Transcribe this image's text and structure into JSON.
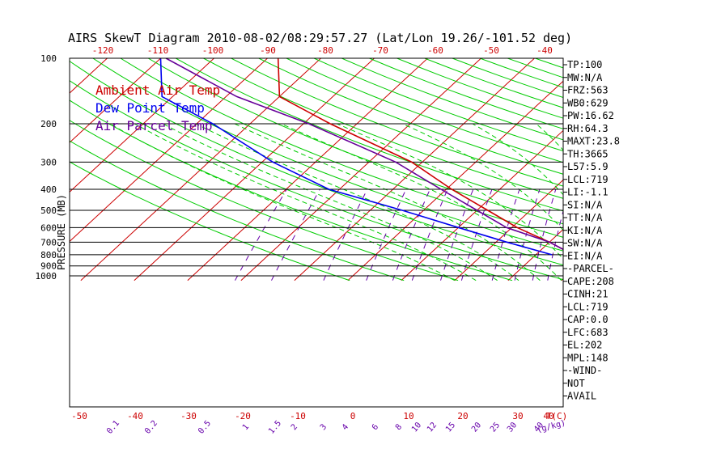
{
  "title": "AIRS SkewT Diagram 2010-08-02/08:29:57.27 (Lat/Lon 19.26/-101.52 deg)",
  "colors": {
    "ambient": "#cc0000",
    "dewpoint": "#0000ee",
    "parcel": "#660099",
    "isotherm": "#cc0000",
    "dry_adiabat": "#00cc00",
    "moist_adiabat": "#00cc00",
    "mixing_ratio": "#6600aa",
    "isobar": "#000000"
  },
  "legend": [
    {
      "label": "Ambient Air Temp",
      "color": "#cc0000"
    },
    {
      "label": "Dew Point Temp",
      "color": "#0000ee"
    },
    {
      "label": "Air Parcel Temp",
      "color": "#660099"
    }
  ],
  "chart_data": {
    "type": "line",
    "subtype": "skew-t log-p",
    "ylabel": "PRESSURE (MB)",
    "y_scale": "log",
    "ylim": [
      1050,
      100
    ],
    "pressure_ticks": [
      100,
      200,
      300,
      400,
      500,
      600,
      700,
      800,
      900,
      1000
    ],
    "top_temperature_ticks": [
      -120,
      -110,
      -100,
      -90,
      -80,
      -70,
      -60,
      -50,
      -40
    ],
    "bottom_temperature_ticks": [
      -50,
      -40,
      -30,
      -20,
      -10,
      0,
      10,
      20,
      30,
      40
    ],
    "bottom_axis_label": "T(C)",
    "mixing_ratio_ticks": [
      "0.1",
      "0.2",
      "0.5",
      "1",
      "1.5",
      "2",
      "3",
      "4",
      "6",
      "8",
      "10",
      "12",
      "15",
      "20",
      "25",
      "30",
      "40"
    ],
    "mixing_ratio_label": "(g/kg)",
    "series": [
      {
        "name": "Ambient Air Temp",
        "points": [
          [
            100,
            -78
          ],
          [
            150,
            -70
          ],
          [
            200,
            -55
          ],
          [
            300,
            -32
          ],
          [
            400,
            -19
          ],
          [
            500,
            -8
          ],
          [
            600,
            1
          ],
          [
            700,
            10
          ],
          [
            800,
            17
          ]
        ]
      },
      {
        "name": "Dew Point Temp",
        "points": [
          [
            100,
            -100
          ],
          [
            150,
            -92
          ],
          [
            200,
            -77
          ],
          [
            300,
            -58
          ],
          [
            400,
            -42
          ],
          [
            500,
            -24
          ],
          [
            600,
            -10
          ],
          [
            700,
            2
          ],
          [
            800,
            13
          ]
        ]
      },
      {
        "name": "Air Parcel Temp",
        "points": [
          [
            100,
            -99
          ],
          [
            150,
            -78
          ],
          [
            200,
            -59
          ],
          [
            300,
            -35
          ],
          [
            400,
            -21
          ],
          [
            500,
            -10
          ],
          [
            600,
            -1
          ],
          [
            700,
            10
          ],
          [
            800,
            17
          ]
        ]
      }
    ]
  },
  "indices": [
    "TP:100",
    "MW:N/A",
    "FRZ:563",
    "WB0:629",
    "PW:16.62",
    "RH:64.3",
    "MAXT:23.8",
    "TH:3665",
    "L57:5.9",
    "LCL:719",
    "LI:-1.1",
    "SI:N/A",
    "TT:N/A",
    "KI:N/A",
    "SW:N/A",
    "EI:N/A",
    "-PARCEL-",
    "CAPE:208",
    "CINH:21",
    "LCL:719",
    "CAP:0.0",
    "LFC:683",
    "EL:202",
    "MPL:148",
    "-WIND-",
    "NOT",
    "AVAIL"
  ]
}
